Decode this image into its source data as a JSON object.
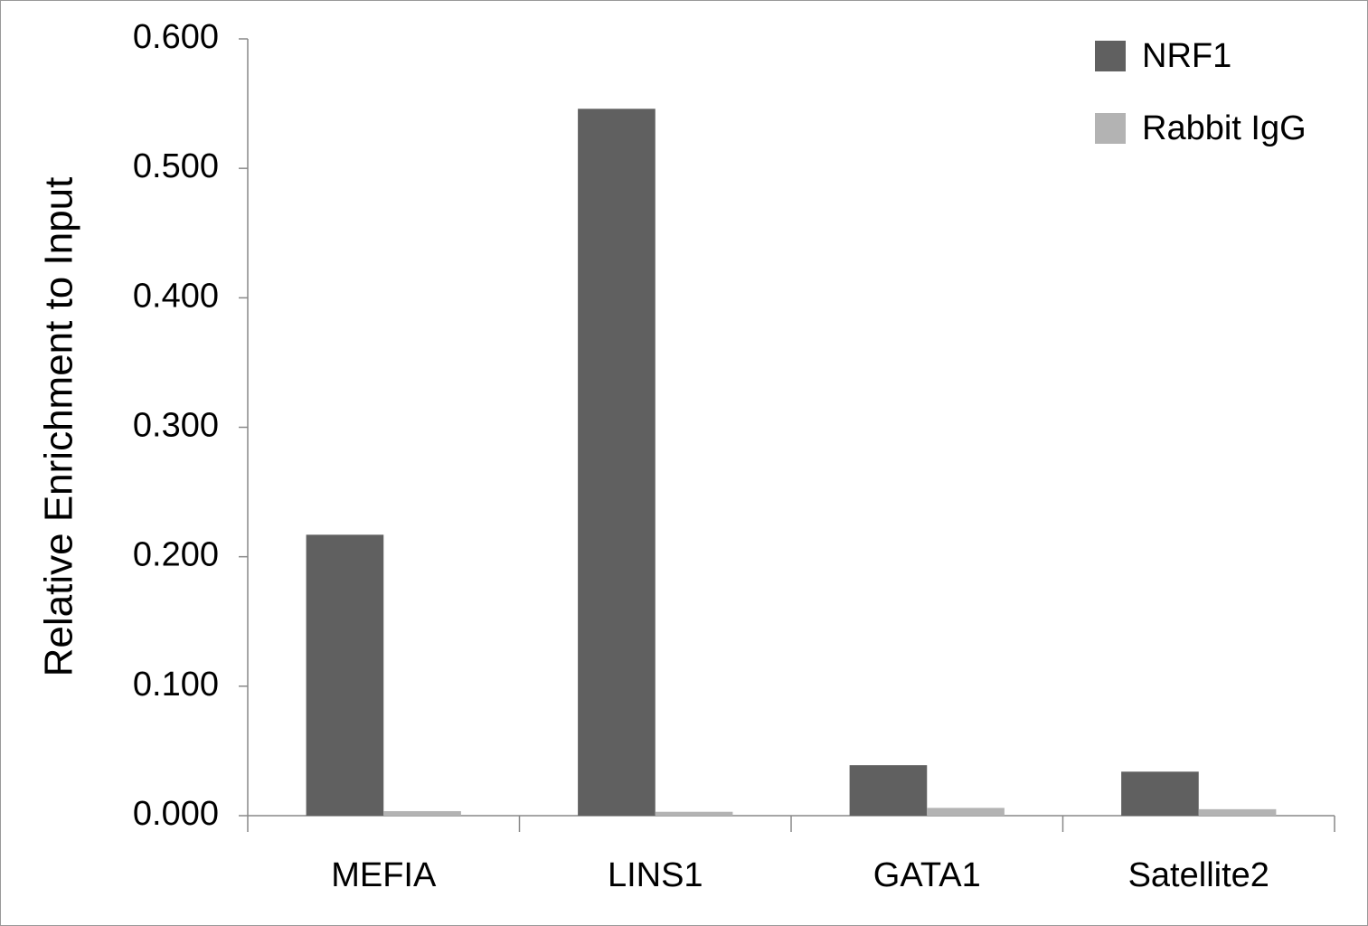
{
  "chart_data": {
    "type": "bar",
    "y_label": "Relative Enrichment to Input",
    "categories": [
      "MEFIA",
      "LINS1",
      "GATA1",
      "Satellite2"
    ],
    "series": [
      {
        "name": "NRF1",
        "color": "#606060",
        "values": [
          0.217,
          0.546,
          0.039,
          0.034
        ]
      },
      {
        "name": "Rabbit IgG",
        "color": "#b3b3b3",
        "values": [
          0.0035,
          0.003,
          0.006,
          0.005
        ]
      }
    ],
    "ylim": [
      0,
      0.6
    ],
    "yticks": [
      {
        "value": 0,
        "label": "0.000"
      },
      {
        "value": 0.1,
        "label": "0.100"
      },
      {
        "value": 0.2,
        "label": "0.200"
      },
      {
        "value": 0.3,
        "label": "0.300"
      },
      {
        "value": 0.4,
        "label": "0.400"
      },
      {
        "value": 0.5,
        "label": "0.500"
      },
      {
        "value": 0.6,
        "label": "0.600"
      }
    ],
    "grid": false,
    "legend_position": "upper right"
  }
}
